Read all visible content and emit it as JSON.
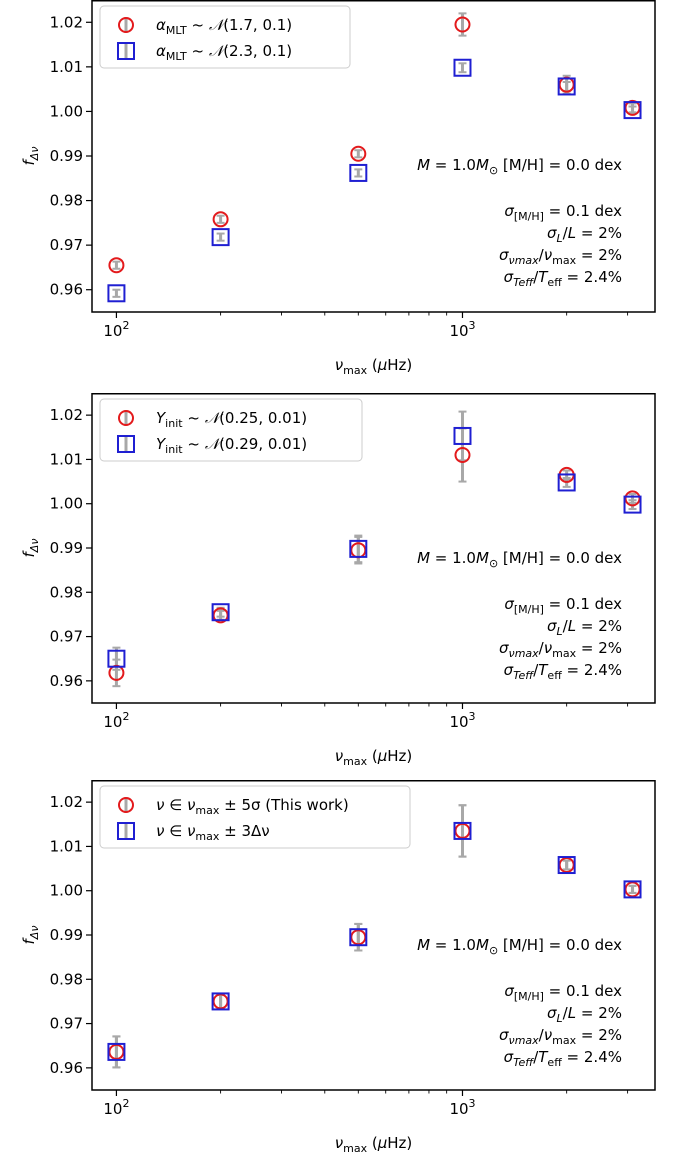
{
  "colors": {
    "red": "#e31a1c",
    "blue": "#1f1fd2",
    "err": "#a8a8a8",
    "frame": "#000000"
  },
  "annotation": {
    "mass": "M = 1.0M",
    "mass_sub": "⊙",
    "mh": "[M/H] = 0.0 dex",
    "lines": [
      "σ[M/H] = 0.1 dex",
      "σL/L = 2%",
      "σνmax/νmax = 2%",
      "σTeff/Teff = 2.4%"
    ]
  },
  "chart_data": [
    {
      "type": "scatter",
      "xlabel": "νmax (μHz)",
      "ylabel": "fΔν",
      "xscale": "log",
      "xlim": [
        85,
        3600
      ],
      "ylim": [
        0.955,
        1.025
      ],
      "xticks": [
        100,
        1000
      ],
      "xtick_labels": [
        "10²",
        "10³"
      ],
      "yticks": [
        0.96,
        0.97,
        0.98,
        0.99,
        1.0,
        1.01,
        1.02
      ],
      "ytick_labels": [
        "0.96",
        "0.97",
        "0.98",
        "0.99",
        "1.00",
        "1.01",
        "1.02"
      ],
      "legend": "top-left",
      "series": [
        {
          "name": "αMLT ~ 𝒩(1.7, 0.1)",
          "marker": "circle",
          "x": [
            100,
            200,
            500,
            1000,
            2000,
            3100
          ],
          "y": [
            0.9655,
            0.9758,
            0.9905,
            1.0195,
            1.006,
            1.0008
          ],
          "err": [
            0.0008,
            0.0008,
            0.0008,
            0.0025,
            0.002,
            0.001
          ]
        },
        {
          "name": "αMLT ~ 𝒩(2.3, 0.1)",
          "marker": "square",
          "x": [
            100,
            200,
            500,
            1000,
            2000,
            3100
          ],
          "y": [
            0.9592,
            0.9718,
            0.9862,
            1.0098,
            1.0056,
            1.0003
          ],
          "err": [
            0.0008,
            0.0008,
            0.0008,
            0.001,
            0.001,
            0.0008
          ]
        }
      ]
    },
    {
      "type": "scatter",
      "xlabel": "νmax (μHz)",
      "ylabel": "fΔν",
      "xscale": "log",
      "xlim": [
        85,
        3600
      ],
      "ylim": [
        0.955,
        1.025
      ],
      "xticks": [
        100,
        1000
      ],
      "xtick_labels": [
        "10²",
        "10³"
      ],
      "yticks": [
        0.96,
        0.97,
        0.98,
        0.99,
        1.0,
        1.01,
        1.02
      ],
      "ytick_labels": [
        "0.96",
        "0.97",
        "0.98",
        "0.99",
        "1.00",
        "1.01",
        "1.02"
      ],
      "legend": "top-left",
      "series": [
        {
          "name": "Yinit ~ 𝒩(0.25, 0.01)",
          "marker": "circle",
          "x": [
            100,
            200,
            500,
            1000,
            2000,
            3100
          ],
          "y": [
            0.9618,
            0.9748,
            0.9895,
            1.011,
            1.0065,
            1.0012
          ],
          "err": [
            0.003,
            0.001,
            0.003,
            0.006,
            0.001,
            0.001
          ]
        },
        {
          "name": "Yinit ~ 𝒩(0.29, 0.01)",
          "marker": "square",
          "x": [
            100,
            200,
            500,
            1000,
            2000,
            3100
          ],
          "y": [
            0.965,
            0.9755,
            0.9898,
            1.0153,
            1.0048,
            0.9998
          ],
          "err": [
            0.0025,
            0.001,
            0.003,
            0.0055,
            0.001,
            0.001
          ]
        }
      ]
    },
    {
      "type": "scatter",
      "xlabel": "νmax (μHz)",
      "ylabel": "fΔν",
      "xscale": "log",
      "xlim": [
        85,
        3600
      ],
      "ylim": [
        0.955,
        1.025
      ],
      "xticks": [
        100,
        1000
      ],
      "xtick_labels": [
        "10²",
        "10³"
      ],
      "yticks": [
        0.96,
        0.97,
        0.98,
        0.99,
        1.0,
        1.01,
        1.02
      ],
      "ytick_labels": [
        "0.96",
        "0.97",
        "0.98",
        "0.99",
        "1.00",
        "1.01",
        "1.02"
      ],
      "legend": "top-left",
      "series": [
        {
          "name": "ν ∈ νmax ± 5σ (This work)",
          "marker": "circle",
          "x": [
            100,
            200,
            500,
            1000,
            2000,
            3100
          ],
          "y": [
            0.9636,
            0.975,
            0.9895,
            1.0135,
            1.0058,
            1.0003
          ],
          "err": [
            0.0035,
            0.0015,
            0.003,
            0.0058,
            0.001,
            0.0008
          ]
        },
        {
          "name": "ν ∈ νmax ± 3Δν",
          "marker": "square",
          "x": [
            100,
            200,
            500,
            1000,
            2000,
            3100
          ],
          "y": [
            0.9636,
            0.975,
            0.9895,
            1.0135,
            1.0058,
            1.0003
          ],
          "err": [
            0.0035,
            0.0015,
            0.003,
            0.0058,
            0.001,
            0.0008
          ]
        }
      ]
    }
  ]
}
